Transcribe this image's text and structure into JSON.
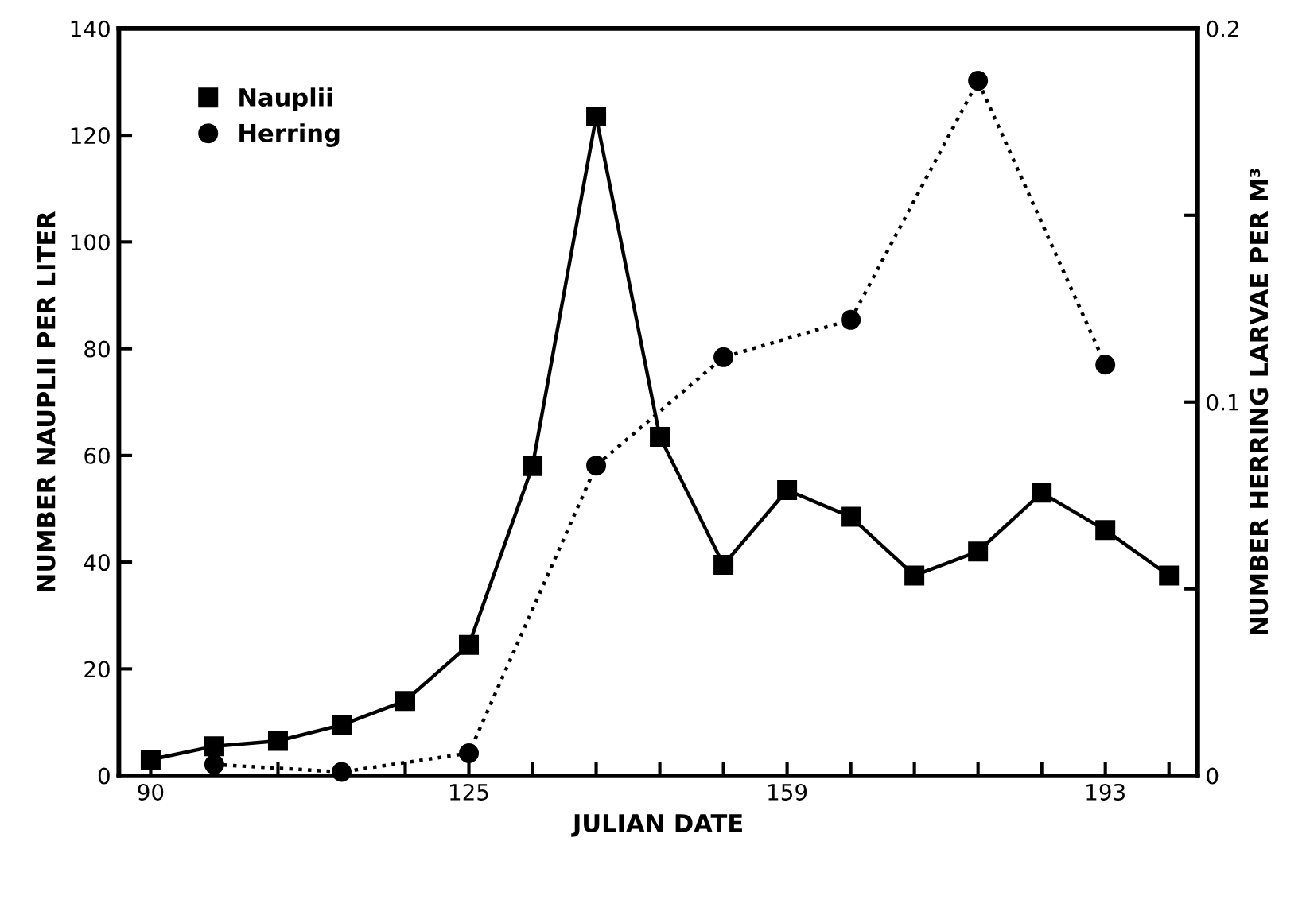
{
  "chart_data": {
    "type": "line",
    "xlabel": "JULIAN DATE",
    "ylabel": "NUMBER NAUPLII PER LITER",
    "y2label": "NUMBER HERRING LARVAE PER M³",
    "categories": [
      "90",
      null,
      null,
      null,
      null,
      "125",
      null,
      null,
      null,
      null,
      "159",
      null,
      null,
      null,
      null,
      "193",
      null
    ],
    "series": [
      {
        "name": "Nauplii",
        "color": "#000000",
        "marker": "square",
        "line_style": "solid",
        "values": [
          3,
          5.5,
          6.5,
          9.5,
          14,
          24.5,
          58,
          123.5,
          63.5,
          39.5,
          53.5,
          48.5,
          37.5,
          42,
          53,
          46,
          37.5
        ]
      },
      {
        "name": "Herring",
        "color": "#000000",
        "marker": "circle",
        "line_style": "dotted",
        "axis": "y2",
        "values": [
          null,
          0.003,
          null,
          0.001,
          null,
          0.006,
          null,
          0.083,
          null,
          0.112,
          null,
          0.122,
          null,
          0.186,
          null,
          0.11,
          null
        ]
      }
    ],
    "ylim": [
      0,
      140
    ],
    "yticks": [
      0,
      20,
      40,
      60,
      80,
      100,
      120,
      140
    ],
    "y2lim": [
      0,
      0.2
    ],
    "y2ticks": [
      0,
      {
        "value": 0.05,
        "label": null
      },
      0.1,
      {
        "value": 0.15,
        "label": null
      },
      0.2
    ],
    "grid": false,
    "legend": "top left"
  }
}
